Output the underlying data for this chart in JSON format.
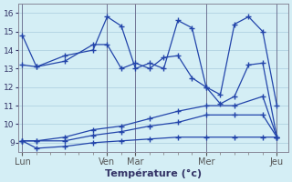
{
  "xlabel": "Température (°c)",
  "bg_color": "#d4eef5",
  "grid_color": "#aaccdd",
  "line_color": "#2244aa",
  "ylim": [
    8.5,
    16.5
  ],
  "yticks": [
    9,
    10,
    11,
    12,
    13,
    14,
    15,
    16
  ],
  "day_labels": [
    "Lun",
    "Ven",
    "Mar",
    "Mer",
    "Jeu"
  ],
  "day_x": [
    0,
    6,
    8,
    13,
    18
  ],
  "xlim": [
    -0.3,
    18.8
  ],
  "line1_x": [
    0,
    1,
    3,
    5,
    6,
    7,
    8,
    9,
    10,
    11,
    12,
    13,
    14,
    15,
    16,
    17,
    18
  ],
  "line1_y": [
    14.8,
    13.1,
    13.7,
    14.0,
    15.8,
    15.3,
    13.0,
    13.3,
    13.0,
    15.6,
    15.2,
    12.0,
    11.6,
    15.4,
    15.8,
    15.0,
    11.0
  ],
  "line2_x": [
    0,
    1,
    3,
    5,
    6,
    7,
    8,
    9,
    10,
    11,
    12,
    13,
    14,
    15,
    16,
    17,
    18
  ],
  "line2_y": [
    13.2,
    13.1,
    13.4,
    14.3,
    14.3,
    13.0,
    13.3,
    13.0,
    13.6,
    13.7,
    12.5,
    12.0,
    11.1,
    11.5,
    13.2,
    13.3,
    9.3
  ],
  "line3_x": [
    0,
    1,
    3,
    5,
    7,
    9,
    11,
    13,
    15,
    17,
    18
  ],
  "line3_y": [
    9.1,
    9.1,
    9.3,
    9.7,
    9.9,
    10.3,
    10.7,
    11.0,
    11.0,
    11.5,
    9.3
  ],
  "line4_x": [
    0,
    1,
    3,
    5,
    7,
    9,
    11,
    13,
    15,
    17,
    18
  ],
  "line4_y": [
    9.1,
    9.1,
    9.1,
    9.4,
    9.6,
    9.9,
    10.1,
    10.5,
    10.5,
    10.5,
    9.3
  ],
  "line5_x": [
    0,
    1,
    3,
    5,
    7,
    9,
    11,
    13,
    15,
    17,
    18
  ],
  "line5_y": [
    9.1,
    8.7,
    8.8,
    9.0,
    9.1,
    9.2,
    9.3,
    9.3,
    9.3,
    9.3,
    9.3
  ]
}
